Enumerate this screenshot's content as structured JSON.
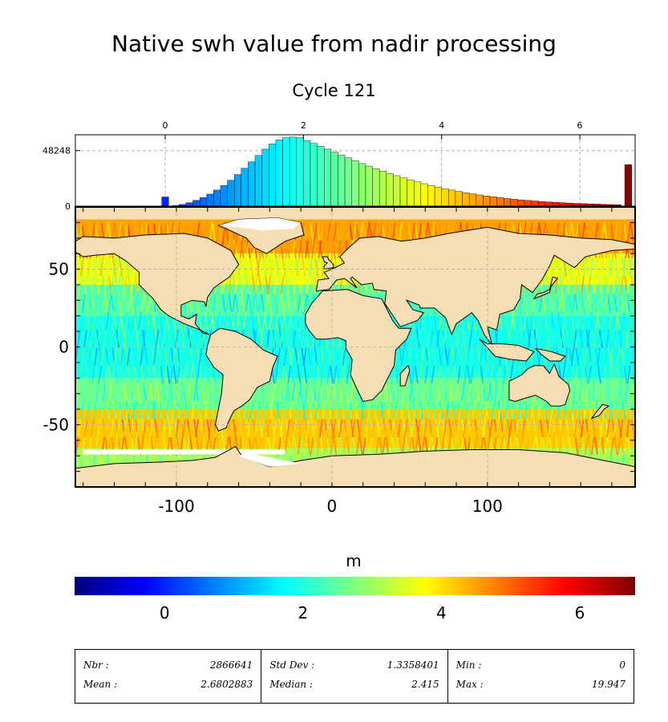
{
  "title": "Native swh value from nadir processing",
  "subtitle": "Cycle 121",
  "colorbar_label": "m",
  "chart_data": [
    {
      "type": "bar",
      "title": "Native swh value from nadir processing",
      "subtitle": "Cycle 121",
      "xlim": [
        -1.3,
        6.8
      ],
      "ylim": [
        0,
        62000
      ],
      "x_ticks": [
        0,
        2,
        4,
        6
      ],
      "y_ticks": [
        0,
        48248
      ],
      "grid": true,
      "bin_centers": [
        0.0,
        0.15,
        0.25,
        0.35,
        0.45,
        0.55,
        0.65,
        0.75,
        0.85,
        0.95,
        1.05,
        1.15,
        1.25,
        1.35,
        1.45,
        1.55,
        1.65,
        1.75,
        1.85,
        1.95,
        2.05,
        2.15,
        2.25,
        2.35,
        2.45,
        2.55,
        2.65,
        2.75,
        2.85,
        2.95,
        3.05,
        3.15,
        3.25,
        3.35,
        3.45,
        3.55,
        3.65,
        3.75,
        3.85,
        3.95,
        4.05,
        4.15,
        4.25,
        4.35,
        4.45,
        4.55,
        4.65,
        4.75,
        4.85,
        4.95,
        5.05,
        5.15,
        5.25,
        5.35,
        5.45,
        5.55,
        5.65,
        5.75,
        5.85,
        5.95,
        6.05,
        6.15,
        6.25,
        6.35,
        6.45,
        6.55,
        6.7
      ],
      "counts": [
        8000,
        600,
        1500,
        3000,
        5000,
        7500,
        10500,
        14000,
        18000,
        22500,
        27500,
        33000,
        38500,
        44000,
        49500,
        54000,
        57500,
        59500,
        60000,
        59500,
        57000,
        54500,
        52000,
        49500,
        47000,
        44500,
        42000,
        39500,
        37000,
        34800,
        32600,
        30500,
        28400,
        26500,
        24600,
        22800,
        21100,
        19500,
        18000,
        16600,
        15200,
        14000,
        12800,
        11700,
        10700,
        9800,
        8900,
        8100,
        7400,
        6700,
        6100,
        5500,
        5000,
        4500,
        4100,
        3700,
        3300,
        3000,
        2700,
        2400,
        2200,
        2000,
        1800,
        1600,
        1400,
        1200,
        36000
      ]
    },
    {
      "type": "heatmap",
      "title": "",
      "xlabel": "",
      "ylabel": "",
      "xlim": [
        -165,
        195
      ],
      "ylim": [
        -90,
        90
      ],
      "x_ticks": [
        -100,
        0,
        100
      ],
      "y_ticks": [
        -50,
        0,
        50
      ],
      "grid": true,
      "colorscale": "jet",
      "colorbar": {
        "label": "m",
        "range": [
          -1.3,
          6.8
        ],
        "ticks": [
          0,
          2,
          4,
          6
        ]
      },
      "latitude_bands": [
        {
          "lat_range": [
            60,
            82
          ],
          "value": 4.5
        },
        {
          "lat_range": [
            40,
            60
          ],
          "value": 3.6
        },
        {
          "lat_range": [
            20,
            40
          ],
          "value": 2.4
        },
        {
          "lat_range": [
            -20,
            20
          ],
          "value": 1.9
        },
        {
          "lat_range": [
            -40,
            -20
          ],
          "value": 2.6
        },
        {
          "lat_range": [
            -65,
            -40
          ],
          "value": 4.2
        },
        {
          "lat_range": [
            -78,
            -65
          ],
          "value": 3.0
        }
      ]
    }
  ],
  "stats": {
    "nbr_label": "Nbr :",
    "nbr_value": "2866641",
    "mean_label": "Mean :",
    "mean_value": "2.6802883",
    "std_label": "Std Dev :",
    "std_value": "1.3358401",
    "median_label": "Median :",
    "median_value": "2.415",
    "min_label": "Min :",
    "min_value": "0",
    "max_label": "Max :",
    "max_value": "19.947"
  },
  "colors": {
    "land": "#f5deb3",
    "ice": "#ffffff",
    "grid": "#b0b0b0",
    "coast": "#000000"
  }
}
